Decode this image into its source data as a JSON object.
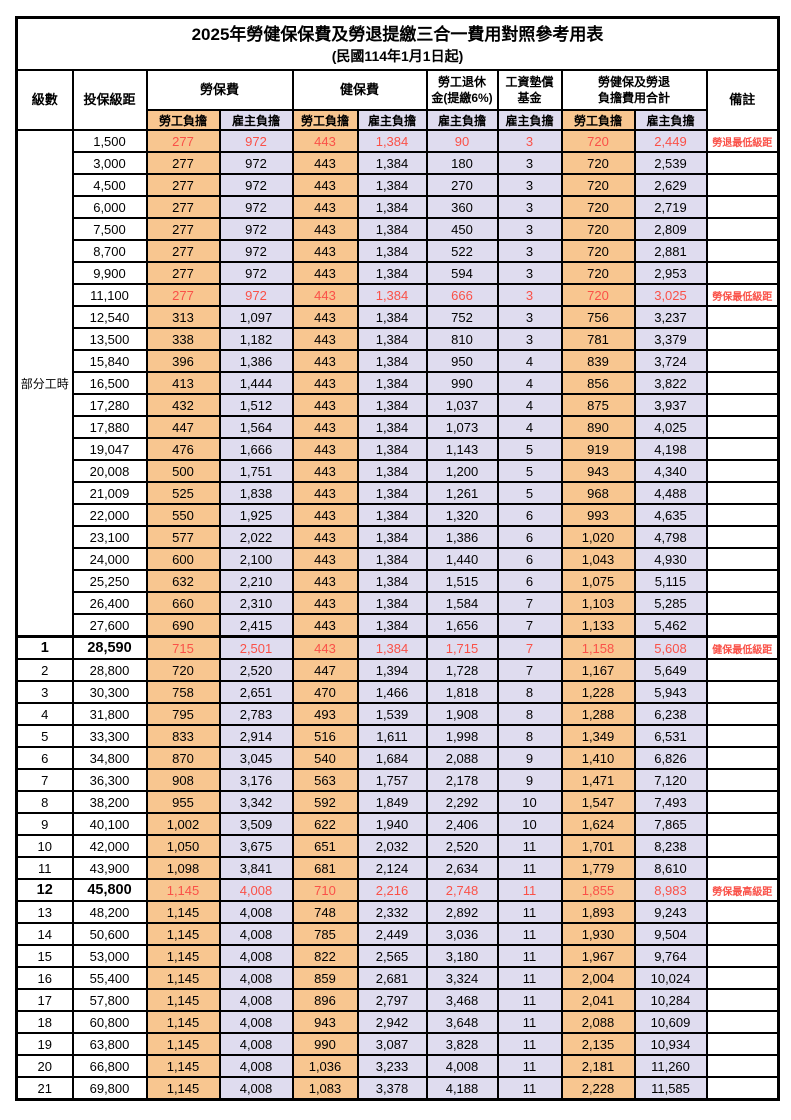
{
  "title": "2025年勞健保保費及勞退提繳三合一費用對照參考用表",
  "subtitle": "(民國114年1月1日起)",
  "columns": {
    "level": "級數",
    "bracket": "投保級距",
    "labor_insurance": "勞保費",
    "health_insurance": "健保費",
    "pension_line1": "勞工退休",
    "pension_line2": "金(提繳6%)",
    "wage_fund_line1": "工資墊償",
    "wage_fund_line2": "基金",
    "total_line1": "勞健保及勞退",
    "total_line2": "負擔費用合計",
    "remark": "備註",
    "employee_share": "勞工負擔",
    "employer_share": "雇主負擔"
  },
  "group_label": "部分工時",
  "group_row_count": 23,
  "colors": {
    "employee_fill": "#F8C690",
    "employer_fill": "#DFDCEF",
    "highlight_red": "#FA5148",
    "border": "#000000",
    "background": "#FFFFFF"
  },
  "rows": [
    {
      "level": "",
      "bracket": "1,500",
      "values": [
        "277",
        "972",
        "443",
        "1,384",
        "90",
        "3",
        "720",
        "2,449"
      ],
      "note": "勞退最低級距",
      "red": true,
      "bold": false
    },
    {
      "level": "",
      "bracket": "3,000",
      "values": [
        "277",
        "972",
        "443",
        "1,384",
        "180",
        "3",
        "720",
        "2,539"
      ],
      "note": "",
      "red": false,
      "bold": false
    },
    {
      "level": "",
      "bracket": "4,500",
      "values": [
        "277",
        "972",
        "443",
        "1,384",
        "270",
        "3",
        "720",
        "2,629"
      ],
      "note": "",
      "red": false,
      "bold": false
    },
    {
      "level": "",
      "bracket": "6,000",
      "values": [
        "277",
        "972",
        "443",
        "1,384",
        "360",
        "3",
        "720",
        "2,719"
      ],
      "note": "",
      "red": false,
      "bold": false
    },
    {
      "level": "",
      "bracket": "7,500",
      "values": [
        "277",
        "972",
        "443",
        "1,384",
        "450",
        "3",
        "720",
        "2,809"
      ],
      "note": "",
      "red": false,
      "bold": false
    },
    {
      "level": "",
      "bracket": "8,700",
      "values": [
        "277",
        "972",
        "443",
        "1,384",
        "522",
        "3",
        "720",
        "2,881"
      ],
      "note": "",
      "red": false,
      "bold": false
    },
    {
      "level": "",
      "bracket": "9,900",
      "values": [
        "277",
        "972",
        "443",
        "1,384",
        "594",
        "3",
        "720",
        "2,953"
      ],
      "note": "",
      "red": false,
      "bold": false
    },
    {
      "level": "",
      "bracket": "11,100",
      "values": [
        "277",
        "972",
        "443",
        "1,384",
        "666",
        "3",
        "720",
        "3,025"
      ],
      "note": "勞保最低級距",
      "red": true,
      "bold": false
    },
    {
      "level": "",
      "bracket": "12,540",
      "values": [
        "313",
        "1,097",
        "443",
        "1,384",
        "752",
        "3",
        "756",
        "3,237"
      ],
      "note": "",
      "red": false,
      "bold": false
    },
    {
      "level": "",
      "bracket": "13,500",
      "values": [
        "338",
        "1,182",
        "443",
        "1,384",
        "810",
        "3",
        "781",
        "3,379"
      ],
      "note": "",
      "red": false,
      "bold": false
    },
    {
      "level": "",
      "bracket": "15,840",
      "values": [
        "396",
        "1,386",
        "443",
        "1,384",
        "950",
        "4",
        "839",
        "3,724"
      ],
      "note": "",
      "red": false,
      "bold": false
    },
    {
      "level": "",
      "bracket": "16,500",
      "values": [
        "413",
        "1,444",
        "443",
        "1,384",
        "990",
        "4",
        "856",
        "3,822"
      ],
      "note": "",
      "red": false,
      "bold": false
    },
    {
      "level": "",
      "bracket": "17,280",
      "values": [
        "432",
        "1,512",
        "443",
        "1,384",
        "1,037",
        "4",
        "875",
        "3,937"
      ],
      "note": "",
      "red": false,
      "bold": false
    },
    {
      "level": "",
      "bracket": "17,880",
      "values": [
        "447",
        "1,564",
        "443",
        "1,384",
        "1,073",
        "4",
        "890",
        "4,025"
      ],
      "note": "",
      "red": false,
      "bold": false
    },
    {
      "level": "",
      "bracket": "19,047",
      "values": [
        "476",
        "1,666",
        "443",
        "1,384",
        "1,143",
        "5",
        "919",
        "4,198"
      ],
      "note": "",
      "red": false,
      "bold": false
    },
    {
      "level": "",
      "bracket": "20,008",
      "values": [
        "500",
        "1,751",
        "443",
        "1,384",
        "1,200",
        "5",
        "943",
        "4,340"
      ],
      "note": "",
      "red": false,
      "bold": false
    },
    {
      "level": "",
      "bracket": "21,009",
      "values": [
        "525",
        "1,838",
        "443",
        "1,384",
        "1,261",
        "5",
        "968",
        "4,488"
      ],
      "note": "",
      "red": false,
      "bold": false
    },
    {
      "level": "",
      "bracket": "22,000",
      "values": [
        "550",
        "1,925",
        "443",
        "1,384",
        "1,320",
        "6",
        "993",
        "4,635"
      ],
      "note": "",
      "red": false,
      "bold": false
    },
    {
      "level": "",
      "bracket": "23,100",
      "values": [
        "577",
        "2,022",
        "443",
        "1,384",
        "1,386",
        "6",
        "1,020",
        "4,798"
      ],
      "note": "",
      "red": false,
      "bold": false
    },
    {
      "level": "",
      "bracket": "24,000",
      "values": [
        "600",
        "2,100",
        "443",
        "1,384",
        "1,440",
        "6",
        "1,043",
        "4,930"
      ],
      "note": "",
      "red": false,
      "bold": false
    },
    {
      "level": "",
      "bracket": "25,250",
      "values": [
        "632",
        "2,210",
        "443",
        "1,384",
        "1,515",
        "6",
        "1,075",
        "5,115"
      ],
      "note": "",
      "red": false,
      "bold": false
    },
    {
      "level": "",
      "bracket": "26,400",
      "values": [
        "660",
        "2,310",
        "443",
        "1,384",
        "1,584",
        "7",
        "1,103",
        "5,285"
      ],
      "note": "",
      "red": false,
      "bold": false
    },
    {
      "level": "",
      "bracket": "27,600",
      "values": [
        "690",
        "2,415",
        "443",
        "1,384",
        "1,656",
        "7",
        "1,133",
        "5,462"
      ],
      "note": "",
      "red": false,
      "bold": false
    },
    {
      "level": "1",
      "bracket": "28,590",
      "values": [
        "715",
        "2,501",
        "443",
        "1,384",
        "1,715",
        "7",
        "1,158",
        "5,608"
      ],
      "note": "健保最低級距",
      "red": true,
      "bold": true
    },
    {
      "level": "2",
      "bracket": "28,800",
      "values": [
        "720",
        "2,520",
        "447",
        "1,394",
        "1,728",
        "7",
        "1,167",
        "5,649"
      ],
      "note": "",
      "red": false,
      "bold": false
    },
    {
      "level": "3",
      "bracket": "30,300",
      "values": [
        "758",
        "2,651",
        "470",
        "1,466",
        "1,818",
        "8",
        "1,228",
        "5,943"
      ],
      "note": "",
      "red": false,
      "bold": false
    },
    {
      "level": "4",
      "bracket": "31,800",
      "values": [
        "795",
        "2,783",
        "493",
        "1,539",
        "1,908",
        "8",
        "1,288",
        "6,238"
      ],
      "note": "",
      "red": false,
      "bold": false
    },
    {
      "level": "5",
      "bracket": "33,300",
      "values": [
        "833",
        "2,914",
        "516",
        "1,611",
        "1,998",
        "8",
        "1,349",
        "6,531"
      ],
      "note": "",
      "red": false,
      "bold": false
    },
    {
      "level": "6",
      "bracket": "34,800",
      "values": [
        "870",
        "3,045",
        "540",
        "1,684",
        "2,088",
        "9",
        "1,410",
        "6,826"
      ],
      "note": "",
      "red": false,
      "bold": false
    },
    {
      "level": "7",
      "bracket": "36,300",
      "values": [
        "908",
        "3,176",
        "563",
        "1,757",
        "2,178",
        "9",
        "1,471",
        "7,120"
      ],
      "note": "",
      "red": false,
      "bold": false
    },
    {
      "level": "8",
      "bracket": "38,200",
      "values": [
        "955",
        "3,342",
        "592",
        "1,849",
        "2,292",
        "10",
        "1,547",
        "7,493"
      ],
      "note": "",
      "red": false,
      "bold": false
    },
    {
      "level": "9",
      "bracket": "40,100",
      "values": [
        "1,002",
        "3,509",
        "622",
        "1,940",
        "2,406",
        "10",
        "1,624",
        "7,865"
      ],
      "note": "",
      "red": false,
      "bold": false
    },
    {
      "level": "10",
      "bracket": "42,000",
      "values": [
        "1,050",
        "3,675",
        "651",
        "2,032",
        "2,520",
        "11",
        "1,701",
        "8,238"
      ],
      "note": "",
      "red": false,
      "bold": false
    },
    {
      "level": "11",
      "bracket": "43,900",
      "values": [
        "1,098",
        "3,841",
        "681",
        "2,124",
        "2,634",
        "11",
        "1,779",
        "8,610"
      ],
      "note": "",
      "red": false,
      "bold": false
    },
    {
      "level": "12",
      "bracket": "45,800",
      "values": [
        "1,145",
        "4,008",
        "710",
        "2,216",
        "2,748",
        "11",
        "1,855",
        "8,983"
      ],
      "note": "勞保最高級距",
      "red": true,
      "bold": true
    },
    {
      "level": "13",
      "bracket": "48,200",
      "values": [
        "1,145",
        "4,008",
        "748",
        "2,332",
        "2,892",
        "11",
        "1,893",
        "9,243"
      ],
      "note": "",
      "red": false,
      "bold": false
    },
    {
      "level": "14",
      "bracket": "50,600",
      "values": [
        "1,145",
        "4,008",
        "785",
        "2,449",
        "3,036",
        "11",
        "1,930",
        "9,504"
      ],
      "note": "",
      "red": false,
      "bold": false
    },
    {
      "level": "15",
      "bracket": "53,000",
      "values": [
        "1,145",
        "4,008",
        "822",
        "2,565",
        "3,180",
        "11",
        "1,967",
        "9,764"
      ],
      "note": "",
      "red": false,
      "bold": false
    },
    {
      "level": "16",
      "bracket": "55,400",
      "values": [
        "1,145",
        "4,008",
        "859",
        "2,681",
        "3,324",
        "11",
        "2,004",
        "10,024"
      ],
      "note": "",
      "red": false,
      "bold": false
    },
    {
      "level": "17",
      "bracket": "57,800",
      "values": [
        "1,145",
        "4,008",
        "896",
        "2,797",
        "3,468",
        "11",
        "2,041",
        "10,284"
      ],
      "note": "",
      "red": false,
      "bold": false
    },
    {
      "level": "18",
      "bracket": "60,800",
      "values": [
        "1,145",
        "4,008",
        "943",
        "2,942",
        "3,648",
        "11",
        "2,088",
        "10,609"
      ],
      "note": "",
      "red": false,
      "bold": false
    },
    {
      "level": "19",
      "bracket": "63,800",
      "values": [
        "1,145",
        "4,008",
        "990",
        "3,087",
        "3,828",
        "11",
        "2,135",
        "10,934"
      ],
      "note": "",
      "red": false,
      "bold": false
    },
    {
      "level": "20",
      "bracket": "66,800",
      "values": [
        "1,145",
        "4,008",
        "1,036",
        "3,233",
        "4,008",
        "11",
        "2,181",
        "11,260"
      ],
      "note": "",
      "red": false,
      "bold": false
    },
    {
      "level": "21",
      "bracket": "69,800",
      "values": [
        "1,145",
        "4,008",
        "1,083",
        "3,378",
        "4,188",
        "11",
        "2,228",
        "11,585"
      ],
      "note": "",
      "red": false,
      "bold": false
    }
  ]
}
